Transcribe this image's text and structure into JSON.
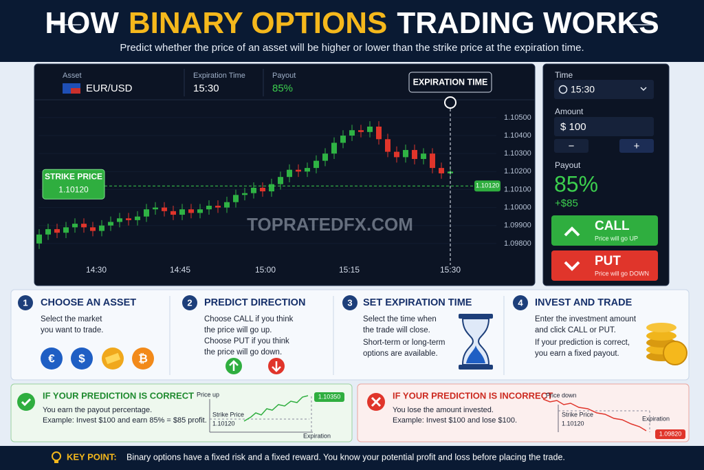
{
  "header": {
    "title_parts": [
      "HOW",
      "BINARY OPTIONS",
      "TRADING WORKS"
    ],
    "subtitle": "Predict whether the price of an asset will be higher or lower than the strike price at the expiration time."
  },
  "ticket": {
    "asset_label": "Asset",
    "asset": "EUR/USD",
    "expiration_label": "Expiration Time",
    "expiration": "15:30",
    "payout_label": "Payout",
    "payout": "85%"
  },
  "chart_data": {
    "type": "candlestick",
    "candles": [
      [
        1.098,
        1.0988,
        1.0977,
        1.0985
      ],
      [
        1.0985,
        1.0991,
        1.0982,
        1.0988
      ],
      [
        1.0988,
        1.0991,
        1.0983,
        1.0986
      ],
      [
        1.0986,
        1.0992,
        1.0983,
        1.0989
      ],
      [
        1.0989,
        1.0994,
        1.0986,
        1.0991
      ],
      [
        1.0991,
        1.0994,
        1.0986,
        1.0989
      ],
      [
        1.0989,
        1.0992,
        1.0984,
        1.0987
      ],
      [
        1.0987,
        1.0993,
        1.0984,
        1.099
      ],
      [
        1.099,
        1.0995,
        1.0987,
        1.0992
      ],
      [
        1.0992,
        1.0997,
        1.0989,
        1.0994
      ],
      [
        1.0994,
        1.0997,
        1.099,
        1.0993
      ],
      [
        1.0993,
        1.0998,
        1.099,
        1.0995
      ],
      [
        1.0995,
        1.1002,
        1.0992,
        1.0999
      ],
      [
        1.0999,
        1.1003,
        1.0996,
        1.1
      ],
      [
        1.1,
        1.1003,
        1.0995,
        1.0998
      ],
      [
        1.0998,
        1.1001,
        1.0993,
        1.0996
      ],
      [
        1.0996,
        1.1002,
        1.0993,
        1.0999
      ],
      [
        1.0999,
        1.1002,
        1.0994,
        1.0997
      ],
      [
        1.0997,
        1.1002,
        1.0994,
        1.0999
      ],
      [
        1.0999,
        1.1004,
        1.0996,
        1.1001
      ],
      [
        1.1001,
        1.1004,
        1.0997,
        1.1
      ],
      [
        1.1,
        1.1006,
        1.0997,
        1.1003
      ],
      [
        1.1003,
        1.101,
        1.1,
        1.1007
      ],
      [
        1.1007,
        1.1011,
        1.1004,
        1.1008
      ],
      [
        1.1008,
        1.1014,
        1.1005,
        1.1011
      ],
      [
        1.1011,
        1.1014,
        1.1006,
        1.1009
      ],
      [
        1.1009,
        1.1016,
        1.1006,
        1.1013
      ],
      [
        1.1013,
        1.102,
        1.101,
        1.1017
      ],
      [
        1.1017,
        1.1024,
        1.1014,
        1.1021
      ],
      [
        1.1021,
        1.1024,
        1.1017,
        1.102
      ],
      [
        1.102,
        1.1025,
        1.1017,
        1.1022
      ],
      [
        1.1022,
        1.1029,
        1.1019,
        1.1026
      ],
      [
        1.1026,
        1.1033,
        1.1023,
        1.103
      ],
      [
        1.103,
        1.1039,
        1.1027,
        1.1036
      ],
      [
        1.1036,
        1.1043,
        1.1033,
        1.104
      ],
      [
        1.104,
        1.1046,
        1.1037,
        1.1043
      ],
      [
        1.1043,
        1.1046,
        1.1039,
        1.1042
      ],
      [
        1.1042,
        1.1048,
        1.1039,
        1.1045
      ],
      [
        1.1045,
        1.1048,
        1.1035,
        1.1038
      ],
      [
        1.1038,
        1.1041,
        1.1028,
        1.1031
      ],
      [
        1.1031,
        1.1034,
        1.1025,
        1.1028
      ],
      [
        1.1028,
        1.1035,
        1.1025,
        1.1032
      ],
      [
        1.1032,
        1.1035,
        1.1024,
        1.1027
      ],
      [
        1.1027,
        1.1033,
        1.1024,
        1.103
      ],
      [
        1.103,
        1.1033,
        1.1019,
        1.1022
      ],
      [
        1.1022,
        1.1025,
        1.1016,
        1.1019
      ],
      [
        1.1019,
        1.1023,
        1.1016,
        1.102
      ]
    ],
    "ylim": [
      1.097,
      1.1058
    ],
    "yticks": [
      {
        "value": 1.105,
        "label": "1.10500"
      },
      {
        "value": 1.104,
        "label": "1.10400"
      },
      {
        "value": 1.103,
        "label": "1.10300"
      },
      {
        "value": 1.102,
        "label": "1.10200"
      },
      {
        "value": 1.101,
        "label": "1.10100"
      },
      {
        "value": 1.1,
        "label": "1.10000"
      },
      {
        "value": 1.099,
        "label": "1.09900"
      },
      {
        "value": 1.098,
        "label": "1.09800"
      }
    ],
    "time_labels": [
      "14:30",
      "14:45",
      "15:00",
      "15:15",
      "15:30"
    ],
    "strike_title": "STRIKE PRICE",
    "strike": {
      "value": 1.1012,
      "label": "1.10120"
    },
    "current": {
      "value": 1.1012,
      "label": "1.10120"
    },
    "expiration_title": "EXPIRATION TIME",
    "watermark": "TOPRATEDFX.COM",
    "up_color": "#2fb344",
    "down_color": "#e0352b"
  },
  "side": {
    "time_label": "Time",
    "time": "15:30",
    "amount_label": "Amount",
    "amount": "$ 100",
    "minus": "−",
    "plus": "+",
    "payout_label": "Payout",
    "payout": "85%",
    "profit": "+$85",
    "call": {
      "title": "CALL",
      "sub": "Price will go UP"
    },
    "put": {
      "title": "PUT",
      "sub": "Price will go DOWN"
    }
  },
  "steps": [
    {
      "num": "1",
      "title": "CHOOSE AN ASSET",
      "lines": [
        "Select the market",
        "you want to trade."
      ],
      "icons": [
        "€",
        "$",
        "₿"
      ]
    },
    {
      "num": "2",
      "title": "PREDICT DIRECTION",
      "lines": [
        "Choose CALL if you think",
        "the price will go up.",
        "Choose PUT if you think",
        "the price will go down."
      ]
    },
    {
      "num": "3",
      "title": "SET EXPIRATION TIME",
      "lines": [
        "Select the time when",
        "the trade will close.",
        "Short-term or long-term",
        "options are available."
      ]
    },
    {
      "num": "4",
      "title": "INVEST AND TRADE",
      "lines": [
        "Enter the investment amount",
        "and click CALL or PUT.",
        "If your prediction is correct,",
        "you earn a fixed payout."
      ]
    }
  ],
  "outcomes": [
    {
      "title": "IF YOUR PREDICTION IS CORRECT",
      "lines": [
        "You earn the payout percentage.",
        "Example: Invest $100 and earn 85% = $85 profit."
      ],
      "axis_label": "Price up",
      "strike_label": "Strike Price",
      "strike": "1.10120",
      "end_price": "1.10350",
      "expiration": "Expiration"
    },
    {
      "title": "IF YOUR PREDICTION IS INCORRECT",
      "lines": [
        "You lose the amount invested.",
        "Example: Invest $100 and lose $100."
      ],
      "axis_label": "Price down",
      "strike_label": "Strike Price",
      "strike": "1.10120",
      "end_price": "1.09820",
      "expiration": "Expiration"
    }
  ],
  "key_point": {
    "label": "KEY POINT:",
    "text": "Binary options have a fixed risk and a fixed reward.  You know your potential profit and loss before placing the trade."
  }
}
